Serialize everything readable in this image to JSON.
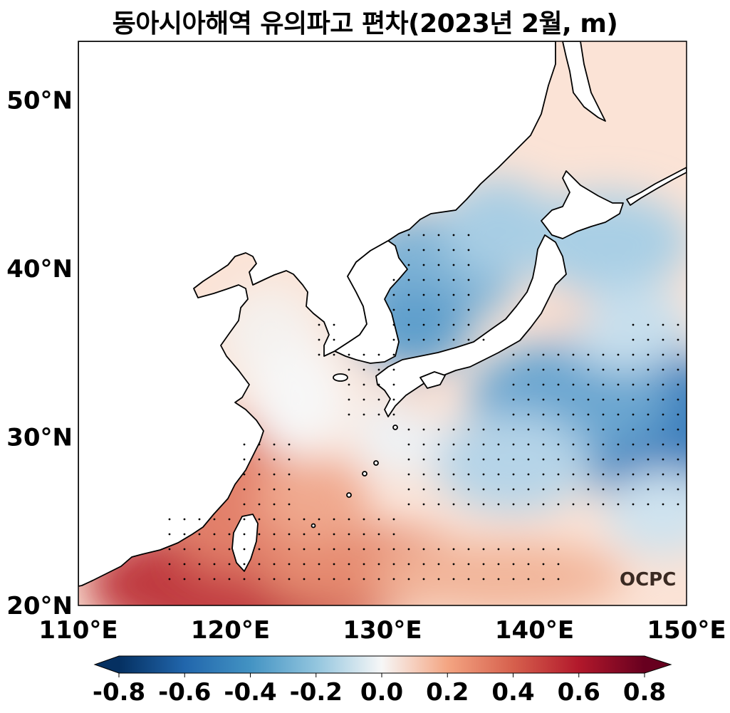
{
  "title": "동아시아해역 유의파고 편차(2023년 2월, m)",
  "logo": "OCPC",
  "colors": {
    "coast": "#000000",
    "land": "#ffffff",
    "positive_strong": "#b2182b",
    "negative_strong": "#2166ac",
    "neutral": "#f7f7f7"
  },
  "map": {
    "lon_range": [
      110,
      150
    ],
    "lat_range": [
      20,
      53.5
    ],
    "lon_ticks": [
      110,
      120,
      130,
      140,
      150
    ],
    "lat_ticks": [
      20,
      30,
      40,
      50
    ],
    "lon_tick_labels": [
      "110°E",
      "120°E",
      "130°E",
      "140°E",
      "150°E"
    ],
    "lat_tick_labels": [
      "20°N",
      "30°N",
      "40°N",
      "50°N"
    ],
    "significance_stipple": true
  },
  "colorbar": {
    "range": [
      -0.8,
      0.8
    ],
    "extend": "both",
    "ticks": [
      -0.8,
      -0.6,
      -0.4,
      -0.2,
      0.0,
      0.2,
      0.4,
      0.6,
      0.8
    ],
    "tick_labels": [
      "-0.8",
      "-0.6",
      "-0.4",
      "-0.2",
      "0.0",
      "0.2",
      "0.4",
      "0.6",
      "0.8"
    ],
    "colormap": "RdBu_r"
  },
  "anomaly_field": [
    {
      "region": "South China Sea / Luzon Strait",
      "lon": 121,
      "lat": 21,
      "value": 0.6
    },
    {
      "region": "Taiwan Strait",
      "lon": 120,
      "lat": 24,
      "value": 0.5
    },
    {
      "region": "East China Sea south",
      "lon": 125,
      "lat": 26,
      "value": 0.3
    },
    {
      "region": "Philippine Sea south",
      "lon": 135,
      "lat": 22,
      "value": 0.35
    },
    {
      "region": "Yellow Sea",
      "lon": 123,
      "lat": 36,
      "value": 0.0
    },
    {
      "region": "Bohai Sea",
      "lon": 120,
      "lat": 39,
      "value": -0.05
    },
    {
      "region": "East Sea (Sea of Japan)",
      "lon": 134,
      "lat": 40,
      "value": -0.3
    },
    {
      "region": "Korea Strait",
      "lon": 130,
      "lat": 35,
      "value": -0.35
    },
    {
      "region": "North Pacific east of Japan",
      "lon": 148,
      "lat": 31,
      "value": -0.5
    },
    {
      "region": "Kuril / Hokkaido offshore",
      "lon": 146,
      "lat": 42,
      "value": -0.2
    }
  ]
}
